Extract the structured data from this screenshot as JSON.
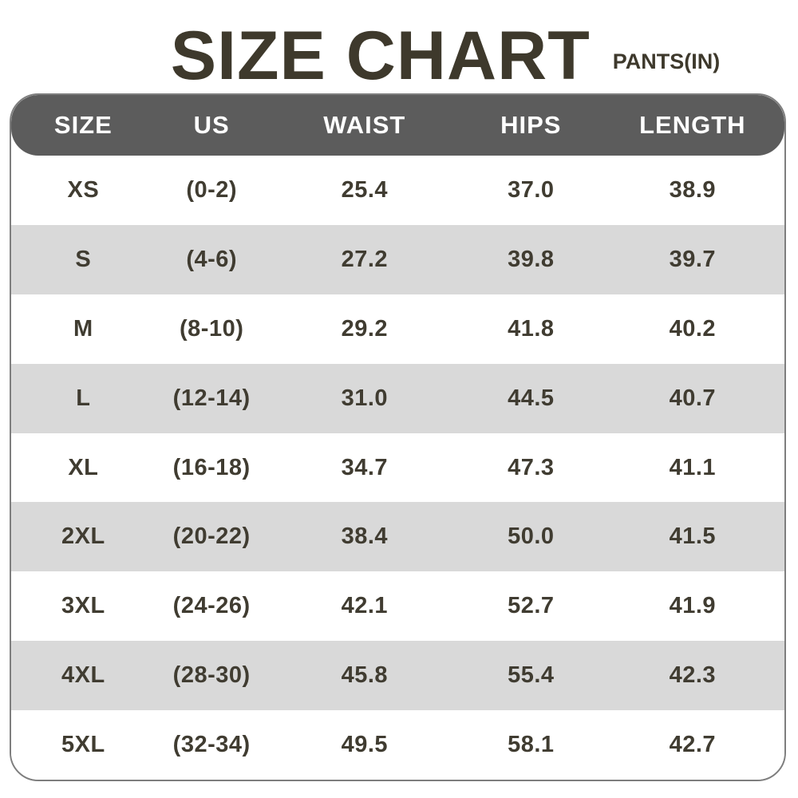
{
  "title": "SIZE CHART",
  "subtitle": "PANTS(IN)",
  "colors": {
    "title_text": "#3e392c",
    "header_bg": "#5c5c5c",
    "header_text": "#ffffff",
    "row_bg": "#ffffff",
    "row_alt_bg": "#d9d9d9",
    "cell_text": "#403c31",
    "border": "#7e7e7e"
  },
  "chart_data": {
    "type": "table",
    "title": "SIZE CHART",
    "subtitle": "PANTS(IN)",
    "unit": "inches",
    "columns": [
      "SIZE",
      "US",
      "WAIST",
      "HIPS",
      "LENGTH"
    ],
    "rows": [
      [
        "XS",
        "(0-2)",
        "25.4",
        "37.0",
        "38.9"
      ],
      [
        "S",
        "(4-6)",
        "27.2",
        "39.8",
        "39.7"
      ],
      [
        "M",
        "(8-10)",
        "29.2",
        "41.8",
        "40.2"
      ],
      [
        "L",
        "(12-14)",
        "31.0",
        "44.5",
        "40.7"
      ],
      [
        "XL",
        "(16-18)",
        "34.7",
        "47.3",
        "41.1"
      ],
      [
        "2XL",
        "(20-22)",
        "38.4",
        "50.0",
        "41.5"
      ],
      [
        "3XL",
        "(24-26)",
        "42.1",
        "52.7",
        "41.9"
      ],
      [
        "4XL",
        "(28-30)",
        "45.8",
        "55.4",
        "42.3"
      ],
      [
        "5XL",
        "(32-34)",
        "49.5",
        "58.1",
        "42.7"
      ]
    ],
    "layout": {
      "striped_rows": "even rows shaded",
      "header_position": "top",
      "rounded_corners": true
    }
  }
}
